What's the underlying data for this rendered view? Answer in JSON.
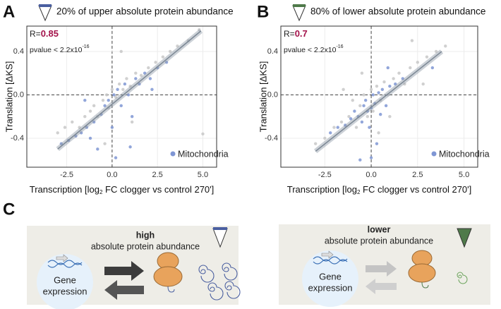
{
  "chart_data": [
    {
      "type": "scatter",
      "panel": "A",
      "title": "20% of upper absolute protein abundance",
      "icon_color": "#4a5fa0",
      "r_label": "R=",
      "r_value": 0.85,
      "pvalue_text": "pvalue < 2.2x10",
      "pvalue_exp": "-16",
      "y_label": "Translation [ΔKS]",
      "x_label": [
        "Transcription [log",
        "2",
        " FC clogger vs control 270']"
      ],
      "xlim": [
        -4.7,
        5.76
      ],
      "ylim": [
        -0.667,
        0.634
      ],
      "xticks": [
        -2.5,
        {
          "value": 0,
          "label": "0.0"
        },
        2.5,
        {
          "value": 5,
          "label": "5.0"
        }
      ],
      "yticks": [
        -0.4,
        {
          "value": 0,
          "label": "0.0"
        },
        0.4
      ],
      "grid": true,
      "legend": "bottom-right",
      "fit": {
        "x": [
          -3,
          4.9
        ],
        "y": [
          -0.5,
          0.59
        ],
        "color": "#8f9aa6"
      },
      "series": [
        {
          "color": "#c8c8c8",
          "x": [
            -3.0,
            -2.6,
            -2.2,
            -1.8,
            -1.5,
            -1.2,
            -1.0,
            -0.8,
            -0.5,
            -0.3,
            -0.2,
            0.0,
            0.2,
            0.4,
            0.6,
            0.8,
            1.0,
            1.3,
            1.6,
            2.0,
            2.4,
            2.8,
            3.2,
            3.6,
            4.2,
            4.8,
            5.0,
            0.5,
            -0.4,
            1.1
          ],
          "values": [
            -0.35,
            -0.3,
            -0.25,
            -0.3,
            -0.2,
            -0.15,
            -0.1,
            -0.2,
            -0.05,
            0.0,
            -0.12,
            0.05,
            -0.02,
            0.1,
            0.05,
            0.15,
            0.08,
            0.2,
            0.18,
            0.25,
            0.3,
            0.35,
            0.4,
            0.45,
            0.5,
            0.6,
            -0.36,
            0.4,
            -0.45,
            -0.25
          ]
        },
        {
          "name": "Mitochondria",
          "color": "#7f96d4",
          "x": [
            -2.8,
            -2.4,
            -2.0,
            -1.7,
            -1.4,
            -1.2,
            -1.0,
            -0.8,
            -0.6,
            -0.4,
            -0.2,
            0.0,
            0.1,
            0.3,
            0.5,
            0.7,
            0.9,
            1.1,
            1.3,
            1.5,
            1.8,
            2.1,
            2.5,
            3.0,
            1.0,
            -1.5,
            2.2,
            0.2
          ],
          "values": [
            -0.45,
            -0.42,
            -0.38,
            -0.35,
            -0.3,
            -0.4,
            -0.25,
            -0.5,
            -0.18,
            -0.1,
            -0.05,
            -0.3,
            0.0,
            0.05,
            -0.1,
            0.1,
            0.0,
            -0.2,
            0.15,
            0.1,
            0.2,
            0.15,
            0.25,
            0.3,
            -0.48,
            -0.05,
            0.05,
            -0.58
          ]
        }
      ]
    },
    {
      "type": "scatter",
      "panel": "B",
      "title": "80% of lower absolute protein abundance",
      "icon_color": "#4f7a4a",
      "r_label": "R=",
      "r_value": 0.7,
      "pvalue_text": "pvalue < 2.2x10",
      "pvalue_exp": "-16",
      "y_label": "Translation [ΔKS]",
      "x_label": [
        "Transcription [log",
        "2",
        " FC clogger vs control 270']"
      ],
      "xlim": [
        -4.87,
        5.74
      ],
      "ylim": [
        -0.667,
        0.634
      ],
      "xticks": [
        -2.5,
        {
          "value": 0,
          "label": "0.0"
        },
        2.5,
        {
          "value": 5,
          "label": "5.0"
        }
      ],
      "yticks": [
        -0.4,
        {
          "value": 0,
          "label": "0.0"
        },
        0.4
      ],
      "grid": true,
      "legend": "bottom-right",
      "fit": {
        "x": [
          -3,
          3.8
        ],
        "y": [
          -0.52,
          0.4
        ],
        "color": "#8f9aa6"
      },
      "series": [
        {
          "color": "#c8c8c8",
          "x": [
            -3.0,
            -2.5,
            -2.0,
            -1.6,
            -1.2,
            -1.0,
            -0.8,
            -0.6,
            -0.4,
            -0.2,
            0.0,
            0.1,
            0.3,
            0.5,
            0.7,
            0.9,
            1.2,
            1.5,
            1.8,
            2.1,
            2.5,
            3.0,
            3.5,
            4.0,
            2.2,
            -0.5,
            0.4,
            1.0,
            -1.5,
            2.8
          ],
          "values": [
            -0.45,
            -0.4,
            -0.3,
            -0.25,
            -0.2,
            -0.05,
            -0.3,
            -0.1,
            0.0,
            -0.2,
            0.05,
            -0.15,
            0.08,
            -0.05,
            0.12,
            0.0,
            0.15,
            0.2,
            0.1,
            0.25,
            0.3,
            0.35,
            0.4,
            0.45,
            0.5,
            0.2,
            -0.35,
            -0.2,
            0.05,
            0.1
          ]
        },
        {
          "name": "Mitochondria",
          "color": "#7f96d4",
          "x": [
            -2.2,
            -1.8,
            -1.4,
            -1.1,
            -0.9,
            -0.7,
            -0.5,
            -0.4,
            -0.3,
            -0.2,
            -0.1,
            0.0,
            0.1,
            0.2,
            0.3,
            0.4,
            0.5,
            0.6,
            0.8,
            1.0,
            1.3,
            1.7,
            -0.6,
            0.0,
            3.3,
            0.9
          ],
          "values": [
            -0.35,
            -0.3,
            -0.28,
            -0.22,
            -0.15,
            -0.2,
            -0.25,
            -0.1,
            -0.05,
            -0.15,
            -0.3,
            -0.12,
            0.0,
            -0.08,
            -0.45,
            0.02,
            -0.18,
            0.05,
            -0.1,
            0.08,
            0.1,
            0.15,
            -0.6,
            -0.58,
            0.25,
            0.25
          ]
        }
      ]
    }
  ],
  "diagram": {
    "label": "C",
    "panels": [
      {
        "title": "high",
        "subtitle": "absolute protein abundance",
        "gene": [
          "Gene",
          "expression"
        ]
      },
      {
        "title": "lower",
        "subtitle": "absolute protein abundance",
        "gene": [
          "Gene",
          "expression"
        ]
      }
    ]
  }
}
